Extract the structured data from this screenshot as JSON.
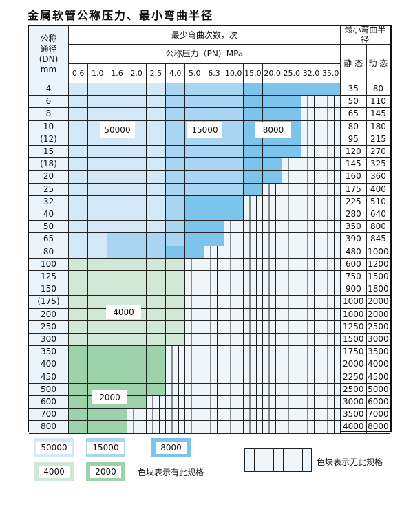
{
  "title": "金属软管公称压力、最小弯曲半径",
  "header": {
    "dn_label": "公称\n通径\n(DN)\nmm",
    "bend_count": "最少弯曲次数，次",
    "pressure": "公称压力（PN）MPa",
    "min_radius": "最小弯曲半径",
    "static": "静 态",
    "dynamic": "动 态",
    "pressures": [
      "0.6",
      "1.0",
      "1.6",
      "2.0",
      "2.5",
      "4.0",
      "5.0",
      "6.3",
      "10.0",
      "15.0",
      "20.0",
      "25.0",
      "32.0",
      "35.0"
    ]
  },
  "colors": {
    "50000": "#d4e9f8",
    "15000": "#a8d5f1",
    "8000": "#7cc4ec",
    "4000": "#d0e8d5",
    "2000": "#9dd2aa",
    "none": "#eef5fb"
  },
  "rows": [
    {
      "dn": "4",
      "s": "35",
      "d": "80",
      "cells": "LLLLLMMMMDDDDD"
    },
    {
      "dn": "6",
      "s": "50",
      "d": "110",
      "cells": "LLLLLMMMMDDDXX"
    },
    {
      "dn": "8",
      "s": "65",
      "d": "145",
      "cells": "LLLLLMMMMDDDXX"
    },
    {
      "dn": "10",
      "s": "80",
      "d": "180",
      "cells": "LLLLLMMMMDDDXX"
    },
    {
      "dn": "(12)",
      "s": "95",
      "d": "215",
      "cells": "LLLLLMMMMDDDXX"
    },
    {
      "dn": "15",
      "s": "120",
      "d": "270",
      "cells": "LLLLLMMMMDDDXX"
    },
    {
      "dn": "(18)",
      "s": "145",
      "d": "325",
      "cells": "LLLLLMMMMDDXXX"
    },
    {
      "dn": "20",
      "s": "160",
      "d": "360",
      "cells": "LLLLLMMMMDDXXX"
    },
    {
      "dn": "25",
      "s": "175",
      "d": "400",
      "cells": "LLLLLMMMMDXXXX"
    },
    {
      "dn": "32",
      "s": "225",
      "d": "510",
      "cells": "LLLLLMDDDXXXXX"
    },
    {
      "dn": "40",
      "s": "280",
      "d": "640",
      "cells": "LLLLLMDDDXXXXX"
    },
    {
      "dn": "50",
      "s": "350",
      "d": "800",
      "cells": "LLLLLMDDXXXXXX"
    },
    {
      "dn": "65",
      "s": "390",
      "d": "845",
      "cells": "LLMMMMDDXXXXXX"
    },
    {
      "dn": "80",
      "s": "480",
      "d": "1000",
      "cells": "LLMMMDDXXXXXXX"
    },
    {
      "dn": "100",
      "s": "600",
      "d": "1200",
      "cells": "GGGGGGXXXXXXXX"
    },
    {
      "dn": "125",
      "s": "750",
      "d": "1500",
      "cells": "GGGGGGXXXXXXXX"
    },
    {
      "dn": "150",
      "s": "900",
      "d": "1800",
      "cells": "GGGGGGXXXXXXXX"
    },
    {
      "dn": "(175)",
      "s": "1000",
      "d": "2000",
      "cells": "GGGGGGXXXXXXXX"
    },
    {
      "dn": "200",
      "s": "1000",
      "d": "2000",
      "cells": "GGGGGGXXXXXXXX"
    },
    {
      "dn": "250",
      "s": "1250",
      "d": "2500",
      "cells": "GGGGGGXXXXXXXX"
    },
    {
      "dn": "300",
      "s": "1500",
      "d": "3000",
      "cells": "GGGGGGXXXXXXXX"
    },
    {
      "dn": "350",
      "s": "1750",
      "d": "3500",
      "cells": "HHHHHXXXXXXXXX"
    },
    {
      "dn": "400",
      "s": "2000",
      "d": "4000",
      "cells": "HHHHHXXXXXXXXX"
    },
    {
      "dn": "450",
      "s": "2250",
      "d": "4500",
      "cells": "HHHHHXXXXXXXXX"
    },
    {
      "dn": "500",
      "s": "2500",
      "d": "5000",
      "cells": "HHHHHXXXXXXXXX"
    },
    {
      "dn": "600",
      "s": "3000",
      "d": "6000",
      "cells": "HHHHXXXXXXXXXX"
    },
    {
      "dn": "700",
      "s": "3500",
      "d": "7000",
      "cells": "HHHXXXXXXXXXXX"
    },
    {
      "dn": "800",
      "s": "4000",
      "d": "8000",
      "cells": "HHHXXXXXXXXXXX"
    }
  ],
  "cell_codes": {
    "L": "50000",
    "M": "15000",
    "D": "8000",
    "G": "4000",
    "H": "2000",
    "X": "none"
  },
  "region_labels": {
    "l50000": "50000",
    "l15000": "15000",
    "l8000": "8000",
    "l4000": "4000",
    "l2000": "2000"
  },
  "legend": {
    "items": [
      "50000",
      "15000",
      "8000",
      "4000",
      "2000"
    ],
    "has_spec": "色块表示有此规格",
    "no_spec": "色块表示无此规格"
  }
}
